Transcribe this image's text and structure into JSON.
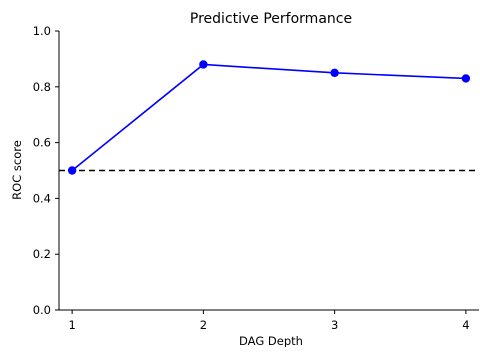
{
  "chart_data": {
    "type": "line",
    "title": "Predictive Performance",
    "xlabel": "DAG Depth",
    "ylabel": "ROC score",
    "x": [
      1,
      2,
      3,
      4
    ],
    "xticks": [
      "1",
      "2",
      "3",
      "4"
    ],
    "xlim": [
      0.9,
      4.1
    ],
    "ylim": [
      0.0,
      1.0
    ],
    "yticks": [
      "0.0",
      "0.2",
      "0.4",
      "0.6",
      "0.8",
      "1.0"
    ],
    "series": [
      {
        "values": [
          0.5,
          0.88,
          0.85,
          0.83
        ],
        "color": "#0000ff",
        "marker": "circle"
      }
    ],
    "reference_line": {
      "y": 0.5,
      "style": "dashed",
      "color": "#000000"
    },
    "grid": false,
    "spines": [
      "left",
      "bottom"
    ]
  }
}
